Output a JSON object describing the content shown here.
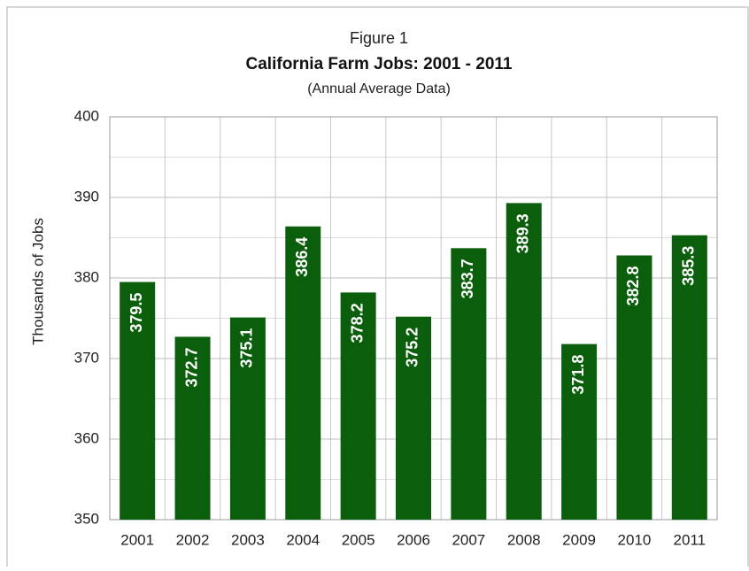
{
  "chart_data": {
    "type": "bar",
    "pretitle": "Figure 1",
    "title": "California Farm Jobs:  2001 - 2011",
    "subtitle": "(Annual Average Data)",
    "y_label": "Thousands of Jobs",
    "categories": [
      "2001",
      "2002",
      "2003",
      "2004",
      "2005",
      "2006",
      "2007",
      "2008",
      "2009",
      "2010",
      "2011"
    ],
    "values": [
      379.5,
      372.7,
      375.1,
      386.4,
      378.2,
      375.2,
      383.7,
      389.3,
      371.8,
      382.8,
      385.3
    ],
    "color": "#0b5e0b",
    "ylim": [
      350,
      400
    ],
    "yticks": [
      350,
      360,
      370,
      380,
      390,
      400
    ],
    "minor_yticks": [
      355,
      365,
      375,
      385,
      395
    ],
    "grid": true
  }
}
